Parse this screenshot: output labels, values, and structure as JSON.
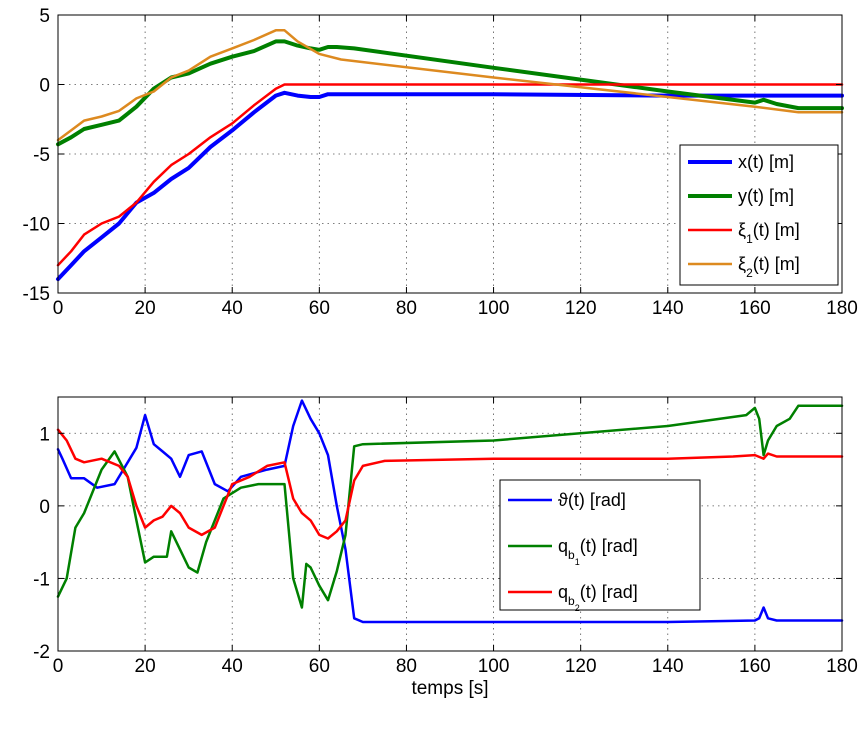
{
  "chart_data": [
    {
      "type": "line",
      "title": "",
      "xlabel": "",
      "ylabel": "",
      "xlim": [
        0,
        180
      ],
      "ylim": [
        -15,
        5
      ],
      "xticks": [
        0,
        20,
        40,
        60,
        80,
        100,
        120,
        140,
        160,
        180
      ],
      "yticks": [
        -15,
        -10,
        -5,
        0,
        5
      ],
      "grid": true,
      "legend_position": "lower-right",
      "series": [
        {
          "name": "x(t) [m]",
          "legend": {
            "main": "x(t) [m]"
          },
          "color": "#0000ff",
          "width": 4,
          "x": [
            0,
            3,
            6,
            10,
            14,
            18,
            22,
            26,
            30,
            35,
            40,
            45,
            50,
            52,
            55,
            58,
            60,
            62,
            64,
            70,
            100,
            140,
            160,
            162,
            165,
            180
          ],
          "y": [
            -14,
            -13,
            -12,
            -11,
            -10,
            -8.5,
            -7.8,
            -6.8,
            -6,
            -4.5,
            -3.3,
            -2,
            -0.8,
            -0.6,
            -0.8,
            -0.9,
            -0.9,
            -0.7,
            -0.7,
            -0.7,
            -0.7,
            -0.8,
            -0.8,
            -0.8,
            -0.8,
            -0.8
          ]
        },
        {
          "name": "y(t) [m]",
          "legend": {
            "main": "y(t) [m]"
          },
          "color": "#008000",
          "width": 4,
          "x": [
            0,
            3,
            6,
            10,
            14,
            18,
            22,
            26,
            30,
            35,
            40,
            45,
            50,
            52,
            55,
            58,
            60,
            62,
            64,
            68,
            100,
            140,
            160,
            162,
            165,
            170,
            180
          ],
          "y": [
            -4.3,
            -3.8,
            -3.2,
            -2.9,
            -2.6,
            -1.6,
            -0.3,
            0.5,
            0.8,
            1.5,
            2,
            2.4,
            3.1,
            3.1,
            2.8,
            2.6,
            2.5,
            2.7,
            2.7,
            2.6,
            1.2,
            -0.5,
            -1.3,
            -1.1,
            -1.4,
            -1.7,
            -1.7
          ]
        },
        {
          "name": "ξ1(t) [m]",
          "legend": {
            "main": "ξ",
            "sub": "1",
            "rest": "(t) [m]"
          },
          "color": "#ff0000",
          "width": 2.5,
          "x": [
            0,
            3,
            6,
            10,
            14,
            18,
            22,
            26,
            30,
            35,
            40,
            45,
            50,
            52,
            55,
            60,
            100,
            180
          ],
          "y": [
            -13,
            -12,
            -10.8,
            -10,
            -9.5,
            -8.5,
            -7,
            -5.8,
            -5,
            -3.8,
            -2.8,
            -1.5,
            -0.3,
            0,
            0,
            0,
            0,
            0
          ]
        },
        {
          "name": "ξ2(t) [m]",
          "legend": {
            "main": "ξ",
            "sub": "2",
            "rest": "(t) [m]"
          },
          "color": "#dd8a20",
          "width": 2.5,
          "x": [
            0,
            3,
            6,
            10,
            14,
            18,
            22,
            26,
            30,
            35,
            40,
            45,
            50,
            52,
            55,
            60,
            65,
            100,
            140,
            160,
            170,
            180
          ],
          "y": [
            -4,
            -3.3,
            -2.6,
            -2.3,
            -1.9,
            -1,
            -0.5,
            0.5,
            1.0,
            2,
            2.6,
            3.2,
            3.9,
            3.9,
            3.1,
            2.2,
            1.8,
            0.5,
            -0.9,
            -1.6,
            -2,
            -2
          ]
        }
      ]
    },
    {
      "type": "line",
      "title": "",
      "xlabel": "temps [s]",
      "ylabel": "",
      "xlim": [
        0,
        180
      ],
      "ylim": [
        -2,
        1.5
      ],
      "xticks": [
        0,
        20,
        40,
        60,
        80,
        100,
        120,
        140,
        160,
        180
      ],
      "yticks": [
        -2,
        -1,
        0,
        1
      ],
      "grid": true,
      "legend_position": "center-right",
      "series": [
        {
          "name": "ϑ(t) [rad]",
          "legend": {
            "main": "ϑ(t) [rad]"
          },
          "color": "#0000ff",
          "width": 2.5,
          "x": [
            0,
            1,
            3,
            6,
            9,
            13,
            16,
            18,
            20,
            22,
            24,
            26,
            28,
            30,
            33,
            36,
            39,
            42,
            45,
            48,
            52,
            54,
            56,
            58,
            60,
            62,
            64,
            66,
            68,
            70,
            100,
            140,
            160,
            161,
            162,
            163,
            165,
            170,
            180
          ],
          "y": [
            0.78,
            0.65,
            0.38,
            0.38,
            0.25,
            0.3,
            0.6,
            0.8,
            1.25,
            0.85,
            0.75,
            0.65,
            0.4,
            0.7,
            0.75,
            0.3,
            0.2,
            0.4,
            0.45,
            0.5,
            0.55,
            1.1,
            1.45,
            1.2,
            1.0,
            0.7,
            0.0,
            -0.6,
            -1.55,
            -1.6,
            -1.6,
            -1.6,
            -1.58,
            -1.55,
            -1.4,
            -1.55,
            -1.58,
            -1.58,
            -1.58
          ]
        },
        {
          "name": "qb1(t) [rad]",
          "legend": {
            "main": "q",
            "sub": "b",
            "subsub": "1",
            "rest": "(t) [rad]"
          },
          "color": "#008000",
          "width": 2.5,
          "x": [
            0,
            2,
            4,
            6,
            10,
            13,
            16,
            18,
            20,
            22,
            25,
            26,
            28,
            30,
            32,
            34,
            38,
            42,
            46,
            50,
            52,
            54,
            56,
            57,
            58,
            60,
            62,
            64,
            66,
            68,
            70,
            100,
            140,
            158,
            160,
            161,
            162,
            163,
            165,
            168,
            170,
            180
          ],
          "y": [
            -1.25,
            -1.0,
            -0.3,
            -0.1,
            0.5,
            0.75,
            0.4,
            -0.2,
            -0.78,
            -0.7,
            -0.7,
            -0.35,
            -0.6,
            -0.85,
            -0.92,
            -0.5,
            0.1,
            0.25,
            0.3,
            0.3,
            0.3,
            -1.0,
            -1.4,
            -0.8,
            -0.85,
            -1.1,
            -1.3,
            -0.9,
            -0.4,
            0.82,
            0.85,
            0.9,
            1.1,
            1.25,
            1.35,
            1.2,
            0.7,
            0.9,
            1.1,
            1.2,
            1.38,
            1.38
          ]
        },
        {
          "name": "qb2(t) [rad]",
          "legend": {
            "main": "q",
            "sub": "b",
            "subsub": "2",
            "rest": "(t) [rad]"
          },
          "color": "#ff0000",
          "width": 2.5,
          "x": [
            0,
            2,
            4,
            6,
            10,
            14,
            16,
            18,
            20,
            22,
            24,
            26,
            28,
            30,
            33,
            36,
            40,
            44,
            48,
            52,
            54,
            56,
            58,
            60,
            62,
            64,
            66,
            68,
            70,
            75,
            100,
            140,
            155,
            160,
            162,
            163,
            165,
            170,
            180
          ],
          "y": [
            1.05,
            0.9,
            0.65,
            0.6,
            0.65,
            0.55,
            0.4,
            0.0,
            -0.3,
            -0.2,
            -0.15,
            0.0,
            -0.1,
            -0.3,
            -0.4,
            -0.3,
            0.3,
            0.4,
            0.55,
            0.6,
            0.1,
            -0.1,
            -0.2,
            -0.4,
            -0.45,
            -0.35,
            -0.2,
            0.35,
            0.55,
            0.62,
            0.65,
            0.65,
            0.68,
            0.7,
            0.65,
            0.72,
            0.68,
            0.68,
            0.68
          ]
        }
      ]
    }
  ]
}
